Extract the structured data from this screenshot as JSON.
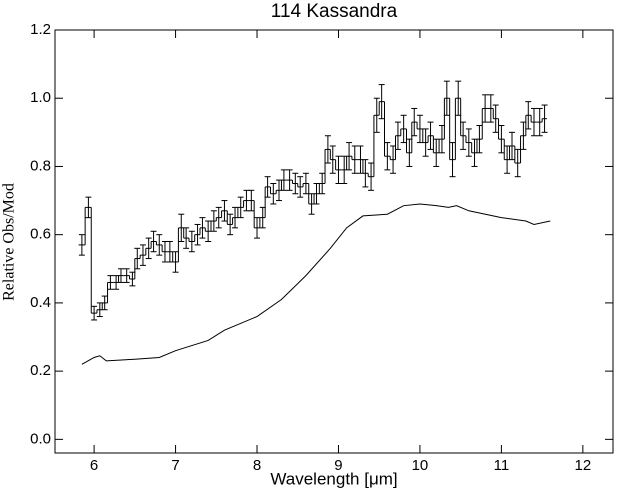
{
  "chart_data": {
    "type": "step-errorbar",
    "title": "114 Kassandra",
    "xlabel": "Wavelength [μm]",
    "ylabel": "Relative Obs/Mod",
    "xlim": [
      5.52,
      12.37
    ],
    "ylim": [
      -0.04,
      1.2
    ],
    "xticks": [
      6,
      7,
      8,
      9,
      10,
      11,
      12
    ],
    "yticks": [
      {
        "value": 0,
        "label": "0.0"
      },
      0.2,
      0.4,
      0.6,
      0.8,
      {
        "value": 1,
        "label": "1.0"
      },
      1.2
    ],
    "color": "#000000",
    "steps": {
      "x": [
        5.85,
        5.93,
        6.0,
        6.07,
        6.13,
        6.2,
        6.27,
        6.33,
        6.4,
        6.47,
        6.53,
        6.6,
        6.67,
        6.73,
        6.8,
        6.87,
        6.93,
        7.0,
        7.07,
        7.13,
        7.2,
        7.27,
        7.33,
        7.4,
        7.47,
        7.53,
        7.6,
        7.67,
        7.73,
        7.8,
        7.87,
        7.93,
        8.0,
        8.07,
        8.13,
        8.2,
        8.27,
        8.33,
        8.4,
        8.47,
        8.53,
        8.6,
        8.67,
        8.73,
        8.8,
        8.87,
        8.93,
        9.0,
        9.07,
        9.13,
        9.2,
        9.27,
        9.33,
        9.4,
        9.47,
        9.53,
        9.6,
        9.67,
        9.73,
        9.8,
        9.87,
        9.93,
        10.0,
        10.07,
        10.13,
        10.2,
        10.27,
        10.33,
        10.4,
        10.47,
        10.53,
        10.6,
        10.67,
        10.73,
        10.8,
        10.87,
        10.93,
        11.0,
        11.07,
        11.13,
        11.2,
        11.27,
        11.33,
        11.4,
        11.47,
        11.53
      ],
      "values": [
        0.57,
        0.68,
        0.37,
        0.38,
        0.4,
        0.46,
        0.46,
        0.48,
        0.48,
        0.47,
        0.53,
        0.54,
        0.56,
        0.58,
        0.57,
        0.55,
        0.55,
        0.52,
        0.62,
        0.59,
        0.58,
        0.6,
        0.62,
        0.61,
        0.64,
        0.65,
        0.67,
        0.63,
        0.65,
        0.68,
        0.7,
        0.7,
        0.62,
        0.65,
        0.74,
        0.72,
        0.73,
        0.76,
        0.76,
        0.75,
        0.74,
        0.75,
        0.69,
        0.72,
        0.75,
        0.85,
        0.82,
        0.79,
        0.79,
        0.83,
        0.82,
        0.82,
        0.78,
        0.77,
        0.95,
        0.99,
        0.83,
        0.82,
        0.89,
        0.91,
        0.84,
        0.93,
        0.91,
        0.87,
        0.89,
        0.84,
        0.88,
        1.0,
        0.82,
        1.0,
        0.89,
        0.87,
        0.84,
        0.88,
        0.97,
        0.97,
        0.94,
        0.88,
        0.82,
        0.86,
        0.81,
        0.89,
        0.95,
        0.93,
        0.93,
        0.94
      ],
      "errors": [
        0.03,
        0.03,
        0.02,
        0.02,
        0.02,
        0.02,
        0.02,
        0.02,
        0.02,
        0.02,
        0.03,
        0.03,
        0.03,
        0.03,
        0.03,
        0.03,
        0.03,
        0.03,
        0.04,
        0.03,
        0.03,
        0.03,
        0.03,
        0.03,
        0.03,
        0.03,
        0.03,
        0.03,
        0.03,
        0.03,
        0.03,
        0.03,
        0.03,
        0.03,
        0.03,
        0.03,
        0.03,
        0.03,
        0.03,
        0.03,
        0.03,
        0.03,
        0.03,
        0.03,
        0.03,
        0.04,
        0.04,
        0.04,
        0.04,
        0.04,
        0.04,
        0.04,
        0.04,
        0.04,
        0.05,
        0.05,
        0.04,
        0.04,
        0.04,
        0.04,
        0.04,
        0.04,
        0.04,
        0.04,
        0.04,
        0.04,
        0.04,
        0.05,
        0.05,
        0.05,
        0.04,
        0.04,
        0.04,
        0.04,
        0.04,
        0.04,
        0.04,
        0.04,
        0.04,
        0.04,
        0.04,
        0.04,
        0.04,
        0.04,
        0.04,
        0.04
      ]
    },
    "line": {
      "x": [
        5.85,
        6.0,
        6.07,
        6.15,
        6.5,
        6.8,
        7.0,
        7.4,
        7.6,
        8.0,
        8.3,
        8.6,
        8.9,
        9.1,
        9.3,
        9.6,
        9.8,
        10.0,
        10.2,
        10.35,
        10.45,
        10.6,
        11.0,
        11.3,
        11.4,
        11.6
      ],
      "values": [
        0.22,
        0.24,
        0.245,
        0.23,
        0.235,
        0.24,
        0.26,
        0.29,
        0.32,
        0.36,
        0.41,
        0.48,
        0.56,
        0.62,
        0.655,
        0.66,
        0.685,
        0.69,
        0.685,
        0.68,
        0.685,
        0.67,
        0.65,
        0.64,
        0.63,
        0.64
      ]
    }
  }
}
